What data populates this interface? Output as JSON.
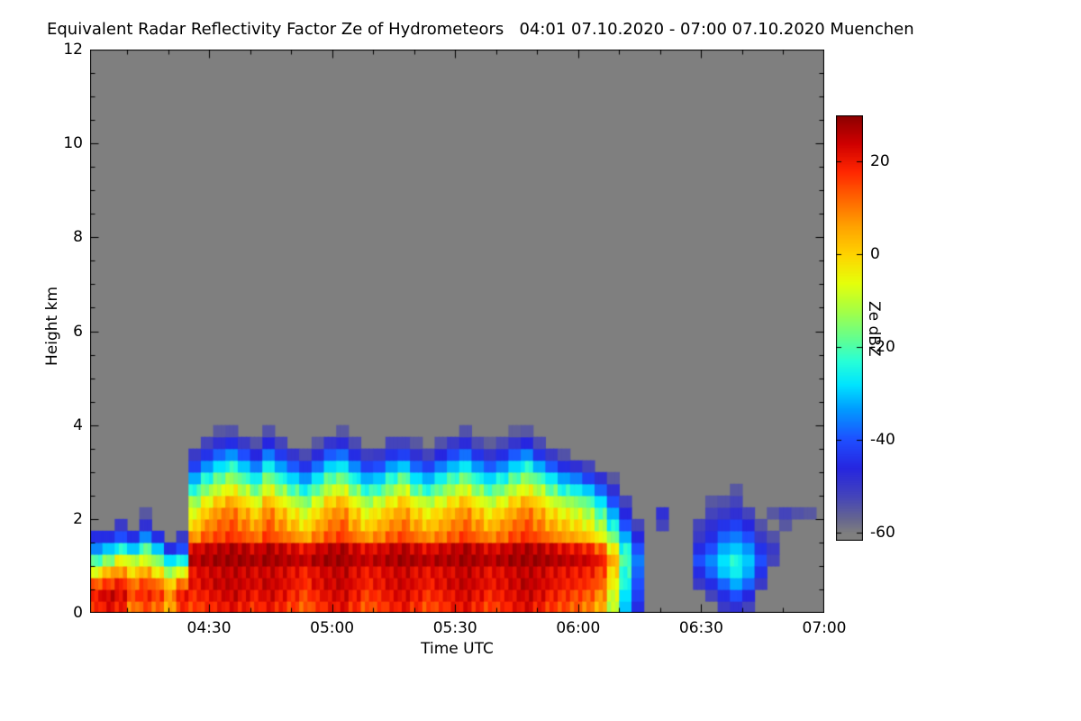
{
  "chart_data": {
    "type": "heatmap",
    "title": "Equivalent Radar Reflectivity Factor Ze of Hydrometeors   04:01 07.10.2020 - 07:00 07.10.2020 Muenchen",
    "xlabel": "Time UTC",
    "ylabel": "Height km",
    "x_start": "04:01",
    "x_end": "07:00",
    "x_total_minutes": 179,
    "x_ticks": [
      {
        "minute": 29,
        "label": "04:30"
      },
      {
        "minute": 59,
        "label": "05:00"
      },
      {
        "minute": 89,
        "label": "05:30"
      },
      {
        "minute": 119,
        "label": "06:00"
      },
      {
        "minute": 149,
        "label": "06:30"
      },
      {
        "minute": 179,
        "label": "07:00"
      }
    ],
    "y_range_km": [
      0,
      12
    ],
    "y_ticks": [
      0,
      2,
      4,
      6,
      8,
      10,
      12
    ],
    "no_echo_color": "#7f7f7f",
    "colorbar": {
      "label": "Ze dBZ",
      "range": [
        -60,
        30
      ],
      "ticks": [
        20,
        0,
        -20,
        -40,
        -60
      ],
      "stops": [
        [
          -60,
          "#7f7f7f"
        ],
        [
          -57,
          "#66668f"
        ],
        [
          -52,
          "#4444bb"
        ],
        [
          -46,
          "#2626e0"
        ],
        [
          -40,
          "#1f4dff"
        ],
        [
          -33,
          "#009fff"
        ],
        [
          -28,
          "#00e4ff"
        ],
        [
          -23,
          "#27ffd8"
        ],
        [
          -18,
          "#63ff90"
        ],
        [
          -12,
          "#a6ff44"
        ],
        [
          -6,
          "#e6ff0a"
        ],
        [
          0,
          "#ffd400"
        ],
        [
          6,
          "#ffa300"
        ],
        [
          12,
          "#ff6600"
        ],
        [
          18,
          "#ff2600"
        ],
        [
          24,
          "#cf0000"
        ],
        [
          30,
          "#8c0000"
        ]
      ]
    },
    "grid": {
      "t0_min": 0,
      "dt_min": 3,
      "z0_km": 0,
      "dz_km": 0.25,
      "units": "dBZ",
      "columns": [
        [
          18,
          20,
          12,
          -5,
          -20,
          -35,
          -45
        ],
        [
          22,
          24,
          15,
          5,
          -15,
          -30,
          -45
        ],
        [
          20,
          22,
          18,
          8,
          -5,
          -25,
          -40,
          -50
        ],
        [
          10,
          15,
          10,
          0,
          -10,
          -30,
          -45
        ],
        [
          15,
          18,
          14,
          6,
          -8,
          -20,
          -35,
          -48,
          -55
        ],
        [
          12,
          16,
          10,
          -2,
          -15,
          -30,
          -45
        ],
        [
          5,
          8,
          0,
          -12,
          -28,
          -45
        ],
        [
          18,
          20,
          10,
          -5,
          -25,
          -40,
          -50
        ],
        [
          16,
          18,
          20,
          22,
          26,
          22,
          8,
          0,
          -6,
          -14,
          -22,
          -32,
          -42,
          -50
        ],
        [
          18,
          20,
          22,
          24,
          27,
          24,
          14,
          8,
          2,
          -6,
          -14,
          -24,
          -34,
          -44,
          -52
        ],
        [
          20,
          22,
          24,
          25,
          28,
          25,
          16,
          12,
          8,
          0,
          -8,
          -18,
          -28,
          -38,
          -48,
          -55
        ],
        [
          22,
          24,
          24,
          26,
          28,
          26,
          18,
          14,
          10,
          4,
          -4,
          -14,
          -24,
          -34,
          -45,
          -54
        ],
        [
          20,
          22,
          23,
          25,
          28,
          25,
          15,
          10,
          5,
          -2,
          -10,
          -20,
          -30,
          -40,
          -50
        ],
        [
          18,
          20,
          22,
          24,
          27,
          23,
          12,
          6,
          0,
          -8,
          -16,
          -26,
          -36,
          -46,
          -54
        ],
        [
          21,
          23,
          24,
          25,
          28,
          26,
          17,
          13,
          9,
          2,
          -6,
          -16,
          -26,
          -36,
          -46,
          -54
        ],
        [
          19,
          21,
          22,
          24,
          27,
          24,
          13,
          8,
          3,
          -5,
          -13,
          -23,
          -33,
          -43,
          -52
        ],
        [
          16,
          18,
          20,
          22,
          26,
          22,
          10,
          3,
          -3,
          -11,
          -19,
          -29,
          -39,
          -49
        ],
        [
          13,
          15,
          17,
          20,
          25,
          20,
          6,
          -2,
          -8,
          -16,
          -24,
          -34,
          -44,
          -53
        ],
        [
          17,
          19,
          21,
          23,
          27,
          23,
          11,
          5,
          -1,
          -9,
          -17,
          -27,
          -37,
          -47,
          -55
        ],
        [
          20,
          22,
          23,
          25,
          28,
          25,
          15,
          10,
          6,
          -1,
          -9,
          -19,
          -29,
          -39,
          -49
        ],
        [
          22,
          23,
          24,
          26,
          28,
          26,
          17,
          13,
          8,
          2,
          -7,
          -17,
          -27,
          -37,
          -47,
          -55
        ],
        [
          18,
          20,
          21,
          23,
          26,
          23,
          12,
          6,
          1,
          -7,
          -15,
          -25,
          -35,
          -45,
          -53
        ],
        [
          14,
          16,
          18,
          21,
          25,
          21,
          8,
          0,
          -6,
          -14,
          -22,
          -32,
          -42,
          -51
        ],
        [
          16,
          18,
          20,
          22,
          26,
          22,
          10,
          4,
          -2,
          -10,
          -20,
          -30,
          -40,
          -50
        ],
        [
          19,
          21,
          22,
          24,
          27,
          24,
          14,
          8,
          3,
          -5,
          -13,
          -23,
          -33,
          -44,
          -52
        ],
        [
          21,
          22,
          23,
          25,
          28,
          25,
          16,
          11,
          6,
          0,
          -8,
          -18,
          -30,
          -42,
          -52
        ],
        [
          18,
          20,
          21,
          23,
          27,
          23,
          12,
          6,
          0,
          -8,
          -18,
          -28,
          -38,
          -48,
          -55
        ],
        [
          15,
          17,
          19,
          22,
          26,
          21,
          9,
          2,
          -4,
          -12,
          -22,
          -32,
          -42,
          -52
        ],
        [
          17,
          19,
          21,
          23,
          27,
          23,
          11,
          5,
          0,
          -8,
          -16,
          -26,
          -36,
          -46,
          -54
        ],
        [
          20,
          21,
          23,
          24,
          27,
          24,
          14,
          9,
          4,
          -3,
          -11,
          -21,
          -31,
          -41,
          -50
        ],
        [
          22,
          23,
          24,
          26,
          28,
          26,
          17,
          12,
          8,
          1,
          -7,
          -17,
          -27,
          -37,
          -47,
          -54
        ],
        [
          19,
          21,
          22,
          24,
          27,
          24,
          13,
          8,
          2,
          -6,
          -14,
          -24,
          -34,
          -44,
          -53
        ],
        [
          16,
          18,
          20,
          22,
          26,
          22,
          10,
          3,
          -3,
          -11,
          -19,
          -29,
          -39,
          -49,
          -56
        ],
        [
          18,
          20,
          21,
          23,
          27,
          23,
          12,
          7,
          1,
          -7,
          -15,
          -25,
          -35,
          -45,
          -53
        ],
        [
          21,
          22,
          23,
          25,
          28,
          25,
          16,
          11,
          6,
          -1,
          -9,
          -19,
          -29,
          -39,
          -49,
          -56
        ],
        [
          23,
          24,
          25,
          26,
          28,
          26,
          18,
          14,
          10,
          3,
          -5,
          -15,
          -25,
          -35,
          -46,
          -55
        ],
        [
          20,
          22,
          23,
          25,
          28,
          25,
          15,
          10,
          5,
          -2,
          -10,
          -20,
          -32,
          -44,
          -53
        ],
        [
          17,
          19,
          21,
          23,
          27,
          23,
          11,
          5,
          -1,
          -9,
          -17,
          -27,
          -39,
          -50
        ],
        [
          15,
          17,
          19,
          22,
          26,
          21,
          8,
          2,
          -5,
          -13,
          -23,
          -33,
          -45,
          -54
        ],
        [
          13,
          15,
          18,
          21,
          25,
          20,
          6,
          -1,
          -8,
          -16,
          -26,
          -36,
          -48
        ],
        [
          10,
          13,
          16,
          20,
          24,
          18,
          3,
          -5,
          -12,
          -20,
          -30,
          -42,
          -52
        ],
        [
          5,
          8,
          12,
          16,
          20,
          12,
          -4,
          -12,
          -20,
          -28,
          -38,
          -48
        ],
        [
          -10,
          -8,
          -5,
          0,
          5,
          -5,
          -15,
          -25,
          -32,
          -40,
          -48,
          -55
        ],
        [
          -30,
          -28,
          -25,
          -22,
          -20,
          -25,
          -32,
          -40,
          -46,
          -52
        ],
        [
          -45,
          -42,
          -40,
          -38,
          -36,
          -40,
          -46,
          -52
        ],
        [],
        [
          null,
          null,
          null,
          null,
          null,
          null,
          null,
          -52,
          -48
        ],
        [],
        [],
        [
          null,
          null,
          -50,
          -45,
          -40,
          -45,
          -50,
          -52
        ],
        [
          null,
          -52,
          -45,
          -38,
          -35,
          -40,
          -45,
          -48,
          -52,
          -55
        ],
        [
          -50,
          -45,
          -38,
          -30,
          -28,
          -32,
          -38,
          -44,
          -50,
          -54
        ],
        [
          -48,
          -40,
          -32,
          -26,
          -24,
          -30,
          -36,
          -42,
          -48,
          -52,
          -55
        ],
        [
          -52,
          -46,
          -38,
          -32,
          -30,
          -34,
          -40,
          -46,
          -52
        ],
        [
          null,
          null,
          -50,
          -44,
          -40,
          -44,
          -50,
          -54
        ],
        [
          null,
          null,
          null,
          null,
          -52,
          -50,
          -54,
          null,
          -55
        ],
        [
          null,
          null,
          null,
          null,
          null,
          null,
          null,
          -55,
          -52
        ],
        [
          null,
          null,
          null,
          null,
          null,
          null,
          null,
          null,
          -54
        ],
        [
          null,
          null,
          null,
          null,
          null,
          null,
          null,
          null,
          -55
        ],
        []
      ]
    }
  }
}
